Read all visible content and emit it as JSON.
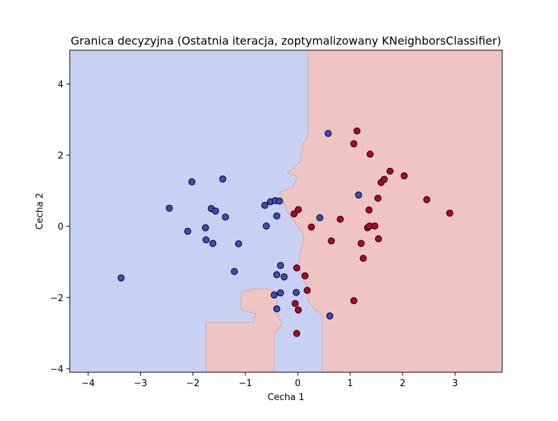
{
  "chart_data": {
    "type": "scatter",
    "title": "Granica decyzyjna (Ostatnia iteracja, zoptymalizowany KNeighborsClassifier)",
    "xlabel": "Cecha 1",
    "ylabel": "Cecha 2",
    "xlim": [
      -4.35,
      3.9
    ],
    "ylim": [
      -4.1,
      4.95
    ],
    "xticks": [
      -4,
      -3,
      -2,
      -1,
      0,
      1,
      2,
      3
    ],
    "yticks": [
      -4,
      -2,
      0,
      2,
      4
    ],
    "grid": false,
    "colors": {
      "region_class0": "#c8d1f3",
      "region_class1": "#efc4c4",
      "point_class0": "#3b4cc0",
      "point_class1": "#b40426",
      "edge": "#000000"
    },
    "region_class1_polygon": [
      [
        0.2,
        4.95
      ],
      [
        3.9,
        4.95
      ],
      [
        3.9,
        -4.1
      ],
      [
        0.47,
        -4.1
      ],
      [
        0.47,
        -2.5
      ],
      [
        0.3,
        -2.3
      ],
      [
        0.2,
        -2.1
      ],
      [
        0.2,
        -1.7
      ],
      [
        0.1,
        -1.5
      ],
      [
        0.0,
        -1.1
      ],
      [
        0.12,
        -0.3
      ],
      [
        0.05,
        -0.1
      ],
      [
        -0.05,
        0.1
      ],
      [
        -0.2,
        0.4
      ],
      [
        -0.3,
        0.8
      ],
      [
        -0.35,
        0.95
      ],
      [
        -0.1,
        1.1
      ],
      [
        0.0,
        1.4
      ],
      [
        -0.2,
        1.5
      ],
      [
        0.05,
        1.8
      ],
      [
        0.1,
        2.3
      ],
      [
        0.2,
        2.6
      ],
      [
        0.2,
        4.95
      ]
    ],
    "region_class1_island": [
      [
        -1.75,
        -4.1
      ],
      [
        -0.45,
        -4.1
      ],
      [
        -0.45,
        -3.0
      ],
      [
        -0.3,
        -2.75
      ],
      [
        -0.4,
        -2.4
      ],
      [
        -0.4,
        -1.85
      ],
      [
        -0.6,
        -1.75
      ],
      [
        -0.8,
        -1.75
      ],
      [
        -1.08,
        -1.85
      ],
      [
        -1.08,
        -2.35
      ],
      [
        -0.8,
        -2.45
      ],
      [
        -0.85,
        -2.7
      ],
      [
        -1.75,
        -2.7
      ]
    ],
    "series": [
      {
        "class": 0,
        "points": [
          [
            -3.37,
            -1.45
          ],
          [
            -2.45,
            0.51
          ],
          [
            -2.1,
            -0.14
          ],
          [
            -2.02,
            1.25
          ],
          [
            -1.76,
            -0.04
          ],
          [
            -1.75,
            -0.38
          ],
          [
            -1.65,
            0.5
          ],
          [
            -1.62,
            -0.48
          ],
          [
            -1.57,
            0.43
          ],
          [
            -1.43,
            1.33
          ],
          [
            -1.38,
            0.26
          ],
          [
            -1.21,
            -1.27
          ],
          [
            -1.13,
            -0.49
          ],
          [
            -0.63,
            0.59
          ],
          [
            -0.6,
            0.01
          ],
          [
            -0.52,
            0.69
          ],
          [
            -0.43,
            0.72
          ],
          [
            -0.4,
            0.29
          ],
          [
            -0.4,
            -1.36
          ],
          [
            -0.4,
            -2.32
          ],
          [
            -0.45,
            -1.93
          ],
          [
            -0.35,
            0.71
          ],
          [
            -0.33,
            -1.1
          ],
          [
            -0.33,
            -1.87
          ],
          [
            -0.26,
            -1.42
          ],
          [
            -0.03,
            -1.86
          ],
          [
            0.42,
            0.24
          ],
          [
            0.58,
            2.61
          ],
          [
            0.61,
            -2.52
          ],
          [
            1.16,
            0.88
          ]
        ]
      },
      {
        "class": 1,
        "points": [
          [
            -0.07,
            0.35
          ],
          [
            -0.05,
            -2.17
          ],
          [
            -0.02,
            -1.17
          ],
          [
            -0.02,
            -3.01
          ],
          [
            0.01,
            0.47
          ],
          [
            0.01,
            -2.35
          ],
          [
            0.14,
            -1.39
          ],
          [
            0.18,
            -1.8
          ],
          [
            0.26,
            -0.02
          ],
          [
            0.64,
            -0.41
          ],
          [
            0.81,
            0.2
          ],
          [
            1.07,
            2.32
          ],
          [
            1.07,
            -2.09
          ],
          [
            1.13,
            2.68
          ],
          [
            1.21,
            -0.48
          ],
          [
            1.25,
            -0.9
          ],
          [
            1.33,
            -0.04
          ],
          [
            1.36,
            0.46
          ],
          [
            1.37,
            0.01
          ],
          [
            1.38,
            2.03
          ],
          [
            1.47,
            0.01
          ],
          [
            1.53,
            0.79
          ],
          [
            1.54,
            -0.35
          ],
          [
            1.59,
            1.23
          ],
          [
            1.65,
            1.32
          ],
          [
            1.76,
            1.55
          ],
          [
            2.03,
            1.42
          ],
          [
            2.46,
            0.75
          ],
          [
            2.9,
            0.37
          ]
        ]
      }
    ]
  }
}
